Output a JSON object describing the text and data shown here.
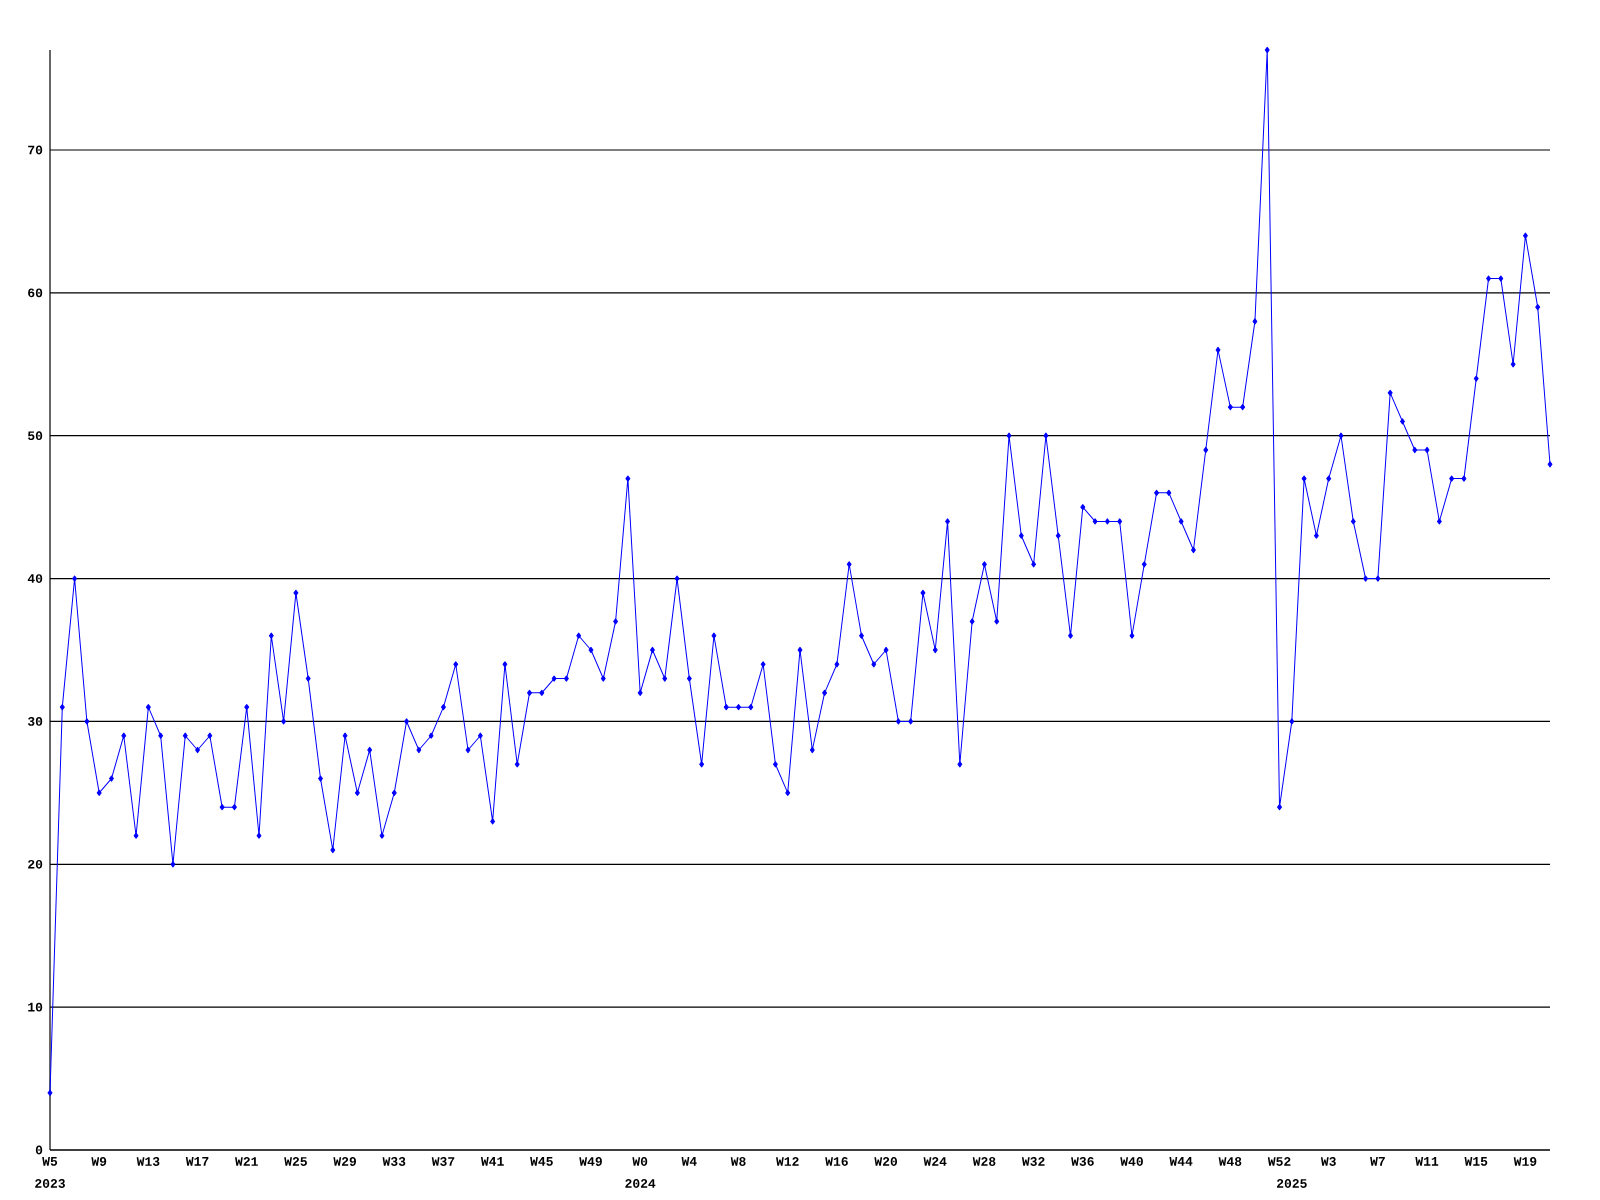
{
  "chart_data": {
    "type": "line",
    "categories": [
      "W5",
      null,
      null,
      null,
      "W9",
      null,
      null,
      null,
      "W13",
      null,
      null,
      null,
      "W17",
      null,
      null,
      null,
      "W21",
      null,
      null,
      null,
      "W25",
      null,
      null,
      null,
      "W29",
      null,
      null,
      null,
      "W33",
      null,
      null,
      null,
      "W37",
      null,
      null,
      null,
      "W41",
      null,
      null,
      null,
      "W45",
      null,
      null,
      null,
      "W49",
      null,
      null,
      null,
      "W0",
      null,
      null,
      null,
      "W4",
      null,
      null,
      null,
      "W8",
      null,
      null,
      null,
      "W12",
      null,
      null,
      null,
      "W16",
      null,
      null,
      null,
      "W20",
      null,
      null,
      null,
      "W24",
      null,
      null,
      null,
      "W28",
      null,
      null,
      null,
      "W32",
      null,
      null,
      null,
      "W36",
      null,
      null,
      null,
      "W40",
      null,
      null,
      null,
      "W44",
      null,
      null,
      null,
      "W48",
      null,
      null,
      null,
      "W52",
      null,
      null,
      null,
      "W3",
      null,
      null,
      null,
      "W7",
      null,
      null,
      null,
      "W11",
      null,
      null,
      null,
      "W15",
      null,
      null,
      null,
      "W19",
      null,
      null
    ],
    "values": [
      4,
      31,
      40,
      30,
      25,
      26,
      29,
      22,
      31,
      29,
      20,
      29,
      28,
      29,
      24,
      24,
      31,
      22,
      36,
      30,
      39,
      33,
      26,
      21,
      29,
      25,
      28,
      22,
      25,
      30,
      28,
      29,
      31,
      34,
      28,
      29,
      23,
      34,
      27,
      32,
      32,
      33,
      33,
      36,
      35,
      33,
      37,
      47,
      32,
      35,
      33,
      40,
      33,
      27,
      36,
      31,
      31,
      31,
      34,
      27,
      25,
      35,
      28,
      32,
      34,
      41,
      36,
      34,
      35,
      30,
      30,
      39,
      35,
      44,
      27,
      37,
      41,
      37,
      50,
      43,
      41,
      50,
      43,
      36,
      45,
      44,
      44,
      44,
      36,
      41,
      46,
      46,
      44,
      42,
      49,
      56,
      52,
      52,
      58,
      77,
      24,
      30,
      47,
      43,
      47,
      50,
      44,
      40,
      40,
      53,
      51,
      49,
      49,
      44,
      47,
      47,
      54,
      61,
      61,
      55,
      64,
      59,
      48
    ],
    "color": "#0000ff",
    "marker": "diamond",
    "line_style": "solid",
    "grid": "y",
    "ylim": [
      0,
      77
    ],
    "yticks": [
      0,
      10,
      20,
      30,
      40,
      50,
      60,
      70
    ],
    "annotations": [
      "2023",
      "2024",
      "2025"
    ]
  }
}
